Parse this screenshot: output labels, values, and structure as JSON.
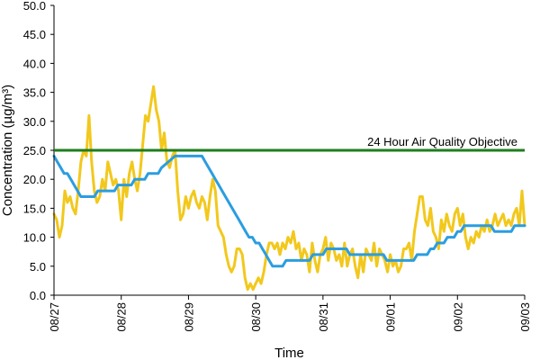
{
  "chart_data": {
    "type": "line",
    "xlabel": "Time",
    "ylabel": "Concentration (µg/m³)",
    "ylim": [
      0,
      50
    ],
    "y_ticks": [
      "0.0",
      "5.0",
      "10.0",
      "15.0",
      "20.0",
      "25.0",
      "30.0",
      "35.0",
      "40.0",
      "45.0",
      "50.0"
    ],
    "x_ticks": [
      "08/27",
      "08/28",
      "08/29",
      "08/30",
      "08/31",
      "09/01",
      "09/02",
      "09/03"
    ],
    "xlim": [
      0,
      7
    ],
    "grid": false,
    "annotation": "24 Hour Air Quality Objective",
    "objective": {
      "value": 25,
      "color": "#1e7d1e"
    },
    "series": [
      {
        "color": "#f2c81c",
        "points": [
          [
            0.0,
            14
          ],
          [
            0.04,
            13
          ],
          [
            0.08,
            10
          ],
          [
            0.12,
            12
          ],
          [
            0.16,
            18
          ],
          [
            0.2,
            16
          ],
          [
            0.24,
            17
          ],
          [
            0.28,
            15
          ],
          [
            0.32,
            14
          ],
          [
            0.36,
            18
          ],
          [
            0.4,
            23
          ],
          [
            0.44,
            25
          ],
          [
            0.48,
            24
          ],
          [
            0.52,
            31
          ],
          [
            0.56,
            23
          ],
          [
            0.6,
            18
          ],
          [
            0.64,
            16
          ],
          [
            0.68,
            17
          ],
          [
            0.72,
            20
          ],
          [
            0.76,
            18
          ],
          [
            0.8,
            23
          ],
          [
            0.84,
            21
          ],
          [
            0.88,
            19
          ],
          [
            0.92,
            20
          ],
          [
            0.96,
            18
          ],
          [
            1.0,
            13
          ],
          [
            1.04,
            20
          ],
          [
            1.08,
            17
          ],
          [
            1.12,
            21
          ],
          [
            1.16,
            23
          ],
          [
            1.2,
            20
          ],
          [
            1.24,
            18
          ],
          [
            1.28,
            21
          ],
          [
            1.32,
            26
          ],
          [
            1.36,
            31
          ],
          [
            1.4,
            30
          ],
          [
            1.44,
            33
          ],
          [
            1.48,
            36
          ],
          [
            1.52,
            32
          ],
          [
            1.56,
            30
          ],
          [
            1.6,
            25
          ],
          [
            1.64,
            28
          ],
          [
            1.68,
            23
          ],
          [
            1.72,
            22
          ],
          [
            1.76,
            24
          ],
          [
            1.8,
            25
          ],
          [
            1.84,
            18
          ],
          [
            1.88,
            13
          ],
          [
            1.92,
            14
          ],
          [
            1.96,
            17
          ],
          [
            2.0,
            15
          ],
          [
            2.04,
            17
          ],
          [
            2.08,
            18
          ],
          [
            2.12,
            16
          ],
          [
            2.16,
            15
          ],
          [
            2.2,
            17
          ],
          [
            2.24,
            16
          ],
          [
            2.28,
            13
          ],
          [
            2.32,
            17
          ],
          [
            2.36,
            20
          ],
          [
            2.4,
            18
          ],
          [
            2.44,
            12
          ],
          [
            2.48,
            11
          ],
          [
            2.52,
            10
          ],
          [
            2.56,
            7
          ],
          [
            2.6,
            5
          ],
          [
            2.64,
            4
          ],
          [
            2.68,
            5
          ],
          [
            2.72,
            8
          ],
          [
            2.76,
            8
          ],
          [
            2.8,
            7
          ],
          [
            2.84,
            3
          ],
          [
            2.88,
            1
          ],
          [
            2.92,
            2
          ],
          [
            2.96,
            1
          ],
          [
            3.0,
            2
          ],
          [
            3.04,
            3
          ],
          [
            3.08,
            2
          ],
          [
            3.12,
            4
          ],
          [
            3.16,
            7
          ],
          [
            3.2,
            9
          ],
          [
            3.24,
            9
          ],
          [
            3.28,
            8
          ],
          [
            3.32,
            9
          ],
          [
            3.36,
            7
          ],
          [
            3.4,
            9
          ],
          [
            3.44,
            8
          ],
          [
            3.48,
            10
          ],
          [
            3.52,
            9
          ],
          [
            3.56,
            11
          ],
          [
            3.6,
            8
          ],
          [
            3.64,
            9
          ],
          [
            3.68,
            6
          ],
          [
            3.72,
            8
          ],
          [
            3.76,
            7
          ],
          [
            3.8,
            4
          ],
          [
            3.84,
            9
          ],
          [
            3.88,
            6
          ],
          [
            3.92,
            4
          ],
          [
            3.96,
            7
          ],
          [
            4.0,
            8
          ],
          [
            4.04,
            10
          ],
          [
            4.08,
            6
          ],
          [
            4.12,
            9
          ],
          [
            4.16,
            8
          ],
          [
            4.2,
            6
          ],
          [
            4.24,
            7
          ],
          [
            4.28,
            5
          ],
          [
            4.32,
            9
          ],
          [
            4.36,
            5
          ],
          [
            4.4,
            7
          ],
          [
            4.44,
            8
          ],
          [
            4.48,
            5
          ],
          [
            4.52,
            3
          ],
          [
            4.56,
            7
          ],
          [
            4.6,
            4
          ],
          [
            4.64,
            8
          ],
          [
            4.68,
            7
          ],
          [
            4.72,
            6
          ],
          [
            4.76,
            9
          ],
          [
            4.8,
            5
          ],
          [
            4.84,
            8
          ],
          [
            4.88,
            7
          ],
          [
            4.92,
            6
          ],
          [
            4.96,
            4
          ],
          [
            5.0,
            7
          ],
          [
            5.04,
            5
          ],
          [
            5.08,
            6
          ],
          [
            5.12,
            4
          ],
          [
            5.16,
            5
          ],
          [
            5.2,
            8
          ],
          [
            5.24,
            8
          ],
          [
            5.28,
            9
          ],
          [
            5.32,
            6
          ],
          [
            5.36,
            11
          ],
          [
            5.4,
            14
          ],
          [
            5.44,
            17
          ],
          [
            5.48,
            17
          ],
          [
            5.52,
            13
          ],
          [
            5.56,
            12
          ],
          [
            5.6,
            15
          ],
          [
            5.64,
            11
          ],
          [
            5.68,
            10
          ],
          [
            5.72,
            8
          ],
          [
            5.76,
            13
          ],
          [
            5.8,
            11
          ],
          [
            5.84,
            14
          ],
          [
            5.88,
            12
          ],
          [
            5.92,
            11
          ],
          [
            5.96,
            14
          ],
          [
            6.0,
            15
          ],
          [
            6.04,
            12
          ],
          [
            6.08,
            14
          ],
          [
            6.12,
            10
          ],
          [
            6.16,
            8
          ],
          [
            6.2,
            10
          ],
          [
            6.24,
            9
          ],
          [
            6.28,
            11
          ],
          [
            6.32,
            10
          ],
          [
            6.36,
            12
          ],
          [
            6.4,
            11
          ],
          [
            6.44,
            13
          ],
          [
            6.48,
            11
          ],
          [
            6.52,
            12
          ],
          [
            6.56,
            14
          ],
          [
            6.6,
            12
          ],
          [
            6.64,
            13
          ],
          [
            6.68,
            14
          ],
          [
            6.72,
            12
          ],
          [
            6.76,
            13
          ],
          [
            6.8,
            12
          ],
          [
            6.84,
            14
          ],
          [
            6.88,
            15
          ],
          [
            6.92,
            12
          ],
          [
            6.96,
            18
          ],
          [
            6.98,
            15
          ],
          [
            7.0,
            12
          ]
        ]
      },
      {
        "color": "#2b9de0",
        "points": [
          [
            0.0,
            24
          ],
          [
            0.05,
            23
          ],
          [
            0.1,
            22
          ],
          [
            0.15,
            21
          ],
          [
            0.2,
            21
          ],
          [
            0.25,
            20
          ],
          [
            0.3,
            19
          ],
          [
            0.35,
            18
          ],
          [
            0.4,
            17
          ],
          [
            0.6,
            17
          ],
          [
            0.65,
            18
          ],
          [
            0.9,
            18
          ],
          [
            0.95,
            19
          ],
          [
            1.15,
            19
          ],
          [
            1.2,
            20
          ],
          [
            1.35,
            20
          ],
          [
            1.4,
            21
          ],
          [
            1.55,
            21
          ],
          [
            1.6,
            22
          ],
          [
            1.7,
            23
          ],
          [
            1.8,
            24
          ],
          [
            2.2,
            24
          ],
          [
            2.25,
            23
          ],
          [
            2.3,
            22
          ],
          [
            2.35,
            21
          ],
          [
            2.4,
            20
          ],
          [
            2.45,
            19
          ],
          [
            2.5,
            18
          ],
          [
            2.55,
            17
          ],
          [
            2.6,
            16
          ],
          [
            2.65,
            15
          ],
          [
            2.7,
            14
          ],
          [
            2.75,
            13
          ],
          [
            2.8,
            12
          ],
          [
            2.85,
            11
          ],
          [
            2.9,
            10
          ],
          [
            2.95,
            10
          ],
          [
            3.0,
            9
          ],
          [
            3.05,
            9
          ],
          [
            3.1,
            8
          ],
          [
            3.15,
            7
          ],
          [
            3.2,
            6
          ],
          [
            3.25,
            5
          ],
          [
            3.4,
            5
          ],
          [
            3.45,
            6
          ],
          [
            3.8,
            6
          ],
          [
            3.85,
            7
          ],
          [
            3.95,
            7
          ],
          [
            4.0,
            7
          ],
          [
            4.05,
            8
          ],
          [
            4.35,
            8
          ],
          [
            4.4,
            7
          ],
          [
            4.9,
            7
          ],
          [
            4.95,
            6
          ],
          [
            5.35,
            6
          ],
          [
            5.4,
            7
          ],
          [
            5.55,
            7
          ],
          [
            5.6,
            8
          ],
          [
            5.65,
            8
          ],
          [
            5.7,
            9
          ],
          [
            5.8,
            9
          ],
          [
            5.85,
            10
          ],
          [
            5.95,
            10
          ],
          [
            6.0,
            11
          ],
          [
            6.05,
            11
          ],
          [
            6.1,
            12
          ],
          [
            6.5,
            12
          ],
          [
            6.55,
            11
          ],
          [
            6.8,
            11
          ],
          [
            6.85,
            12
          ],
          [
            7.0,
            12
          ]
        ]
      }
    ]
  }
}
